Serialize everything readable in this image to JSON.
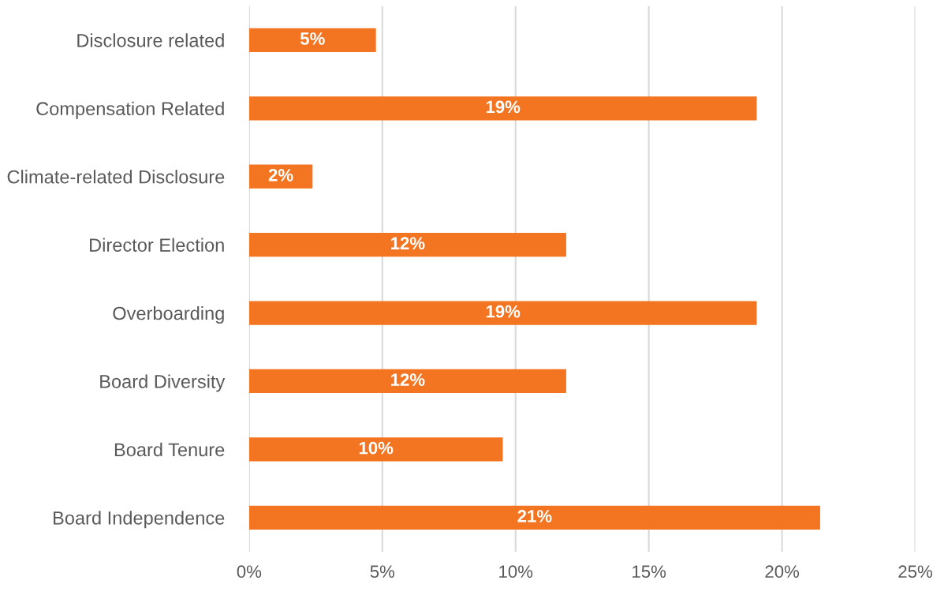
{
  "chart_data": {
    "type": "bar",
    "orientation": "horizontal",
    "categories": [
      "Disclosure related",
      "Compensation Related",
      "Climate-related Disclosure",
      "Director Election",
      "Overboarding",
      "Board Diversity",
      "Board Tenure",
      "Board Independence"
    ],
    "values": [
      4.76,
      19.05,
      2.38,
      11.9,
      19.05,
      11.9,
      9.52,
      21.43
    ],
    "value_labels": [
      "5%",
      "19%",
      "2%",
      "12%",
      "19%",
      "12%",
      "10%",
      "21%"
    ],
    "color": "#f37521",
    "xlim": [
      0,
      25
    ],
    "xticks": [
      {
        "value": 0,
        "label": "0%"
      },
      {
        "value": 5,
        "label": "5%"
      },
      {
        "value": 10,
        "label": "10%"
      },
      {
        "value": 15,
        "label": "15%"
      },
      {
        "value": 20,
        "label": "20%"
      },
      {
        "value": 25,
        "label": "25%"
      }
    ],
    "grid": "x"
  }
}
